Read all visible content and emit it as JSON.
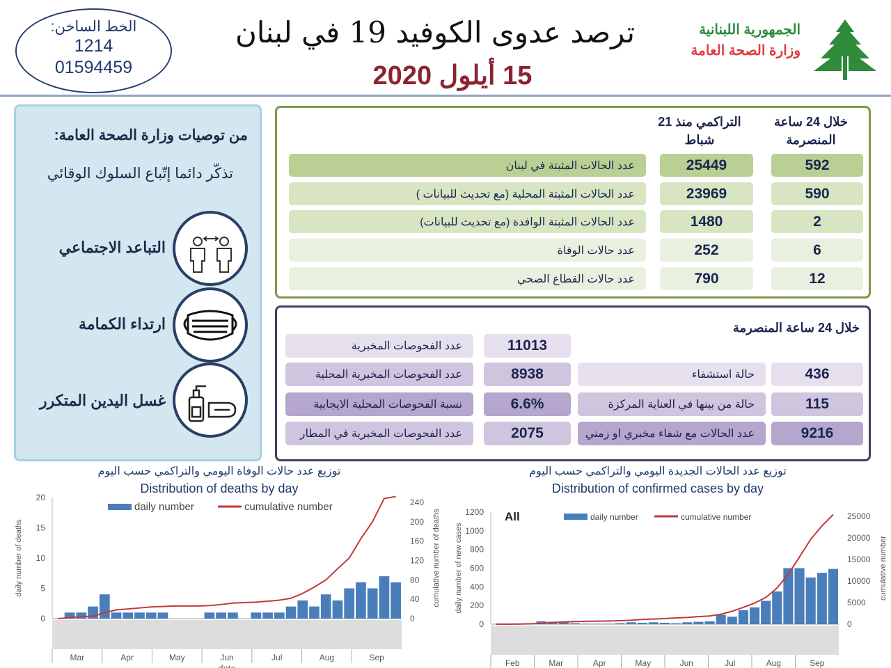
{
  "header": {
    "hotline_label": "الخط الساخن:",
    "hotline_1": "1214",
    "hotline_2": "01594459",
    "title": "ترصد عدوى الكوفيد 19 في لبنان",
    "date": "15 أيلول 2020",
    "republic": "الجمهورية اللبنانية",
    "ministry": "وزارة الصحة العامة"
  },
  "colors": {
    "green": "#7e9a45",
    "purple": "#4a3963",
    "title_red": "#8b2331",
    "bar": "#4a7ebb",
    "line": "#c0393b"
  },
  "recommendations": {
    "heading": "من توصيات وزارة الصحة العامة:",
    "subtitle": "تذكّر دائما إتّباع السلوك الوقائي",
    "items": [
      {
        "label": "التباعد الاجتماعي",
        "icon": "social-distance-icon"
      },
      {
        "label": "ارتداء الكمامة",
        "icon": "face-mask-icon"
      },
      {
        "label": "غسل اليدين المتكرر",
        "icon": "hand-wash-icon"
      }
    ]
  },
  "cases_table": {
    "col_24h": "خلال 24 ساعة المنصرمة",
    "col_cum": "التراكمي منذ 21 شباط",
    "rows": [
      {
        "label": "عدد الحالات المثبتة في لبنان",
        "cum": "25449",
        "day": "592"
      },
      {
        "label": "عدد الحالات المثبتة المحلية  (مع تحديث للبيانات )",
        "cum": "23969",
        "day": "590"
      },
      {
        "label": "عدد الحالات المثبتة الوافدة (مع تحديث للبيانات)",
        "cum": "1480",
        "day": "2"
      },
      {
        "label": "عدد حالات الوفاة",
        "cum": "252",
        "day": "6"
      },
      {
        "label": "عدد حالات القطاع الصحي",
        "cum": "790",
        "day": "12"
      }
    ]
  },
  "tests_table": {
    "heading": "خلال 24 ساعة المنصرمة",
    "left": [
      {
        "label": "عدد الفحوصات المخبرية",
        "value": "11013"
      },
      {
        "label": "عدد الفحوصات المخبرية  المحلية",
        "value": "8938"
      },
      {
        "label": "نسبة الفحوصات المحلية الايجابية",
        "value": "6.6%"
      },
      {
        "label": "عدد الفحوصات المخبرية في المطار",
        "value": "2075"
      }
    ],
    "right": [
      {
        "label": "حالة استشفاء",
        "value": "436"
      },
      {
        "label": "حالة من بينها في العناية المركزة",
        "value": "115"
      },
      {
        "label": "عدد الحالات مع شفاء مخبري او زمني",
        "value": "9216"
      }
    ]
  },
  "chart_data": [
    {
      "type": "bar+line",
      "title_ar": "توزيع عدد حالات  الوفاة اليومي والتراكمي حسب اليوم",
      "title": "Distribution of deaths by day",
      "xlabel": "date",
      "ylabel": "daily number of deaths",
      "y2label": "cumulative number of deaths",
      "ylim": [
        0,
        20
      ],
      "y2lim": [
        0,
        250
      ],
      "yticks": [
        0,
        5,
        10,
        15,
        20
      ],
      "y2ticks": [
        0,
        40,
        80,
        120,
        160,
        200,
        240
      ],
      "legend": [
        "daily number",
        "cumulative number"
      ],
      "legend_position": "top",
      "months": [
        "Mar",
        "Apr",
        "May",
        "Jun",
        "Jul",
        "Aug",
        "Sep"
      ],
      "x": [
        "Mar 1",
        "Mar 8",
        "Mar 15",
        "Mar 22",
        "Mar 29",
        "Apr 5",
        "Apr 12",
        "Apr 19",
        "Apr 26",
        "May 3",
        "May 10",
        "May 17",
        "May 24",
        "May 31",
        "Jun 7",
        "Jun 14",
        "Jun 21",
        "Jun 28",
        "Jul 5",
        "Jul 12",
        "Jul 19",
        "Jul 26",
        "Aug 2",
        "Aug 9",
        "Aug 16",
        "Aug 23",
        "Aug 30",
        "Sep 6",
        "Sep 13",
        "Sep 15"
      ],
      "series": [
        {
          "name": "daily number",
          "values": [
            0,
            1,
            1,
            2,
            4,
            1,
            1,
            1,
            1,
            1,
            0,
            0,
            0,
            1,
            1,
            1,
            0,
            1,
            1,
            1,
            2,
            3,
            2,
            4,
            3,
            5,
            6,
            5,
            7,
            6
          ]
        },
        {
          "name": "cumulative number",
          "values": [
            0,
            2,
            4,
            5,
            12,
            18,
            20,
            22,
            24,
            25,
            26,
            26,
            26,
            27,
            29,
            32,
            33,
            34,
            36,
            38,
            42,
            52,
            65,
            80,
            103,
            125,
            165,
            200,
            248,
            252
          ]
        }
      ]
    },
    {
      "type": "bar+line",
      "title_ar": "توزيع عدد الحالات الجديدة اليومي والتراكمي حسب اليوم",
      "title": "Distribution of confirmed cases by day",
      "annotation": "All",
      "xlabel": "date",
      "ylabel": "daily number of new cases",
      "y2label": "cumulative number",
      "ylim": [
        0,
        1200
      ],
      "y2lim": [
        0,
        26000
      ],
      "yticks": [
        0,
        200,
        400,
        600,
        800,
        1000,
        1200
      ],
      "y2ticks": [
        0,
        5000,
        10000,
        15000,
        20000,
        25000
      ],
      "legend": [
        "daily number",
        "cumulative number"
      ],
      "legend_position": "top",
      "months": [
        "Feb",
        "Mar",
        "Apr",
        "May",
        "Jun",
        "Jul",
        "Aug",
        "Sep"
      ],
      "x": [
        "Feb 20",
        "Feb 27",
        "Mar 5",
        "Mar 12",
        "Mar 19",
        "Mar 26",
        "Apr 2",
        "Apr 9",
        "Apr 16",
        "Apr 23",
        "Apr 30",
        "May 7",
        "May 14",
        "May 21",
        "May 28",
        "Jun 4",
        "Jun 11",
        "Jun 18",
        "Jun 25",
        "Jul 2",
        "Jul 9",
        "Jul 16",
        "Jul 23",
        "Jul 30",
        "Aug 6",
        "Aug 13",
        "Aug 20",
        "Aug 27",
        "Sep 3",
        "Sep 10",
        "Sep 15"
      ],
      "series": [
        {
          "name": "daily number",
          "values": [
            1,
            1,
            2,
            10,
            30,
            25,
            20,
            10,
            5,
            4,
            5,
            10,
            20,
            15,
            20,
            15,
            10,
            20,
            25,
            30,
            100,
            80,
            150,
            180,
            250,
            350,
            600,
            600,
            500,
            550,
            592
          ]
        },
        {
          "name": "cumulative number",
          "values": [
            1,
            5,
            20,
            80,
            200,
            400,
            500,
            600,
            670,
            710,
            730,
            800,
            900,
            1100,
            1200,
            1300,
            1450,
            1550,
            1750,
            1900,
            2300,
            3000,
            3900,
            4900,
            6200,
            8400,
            11600,
            15600,
            19700,
            22800,
            25449
          ]
        }
      ]
    }
  ]
}
